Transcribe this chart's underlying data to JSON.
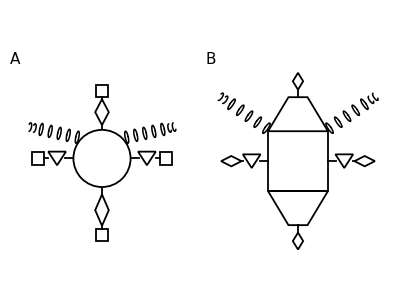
{
  "background_color": "#ffffff",
  "fig_width": 4.0,
  "fig_height": 3.08,
  "dpi": 100,
  "lw": 1.3,
  "color": "black"
}
